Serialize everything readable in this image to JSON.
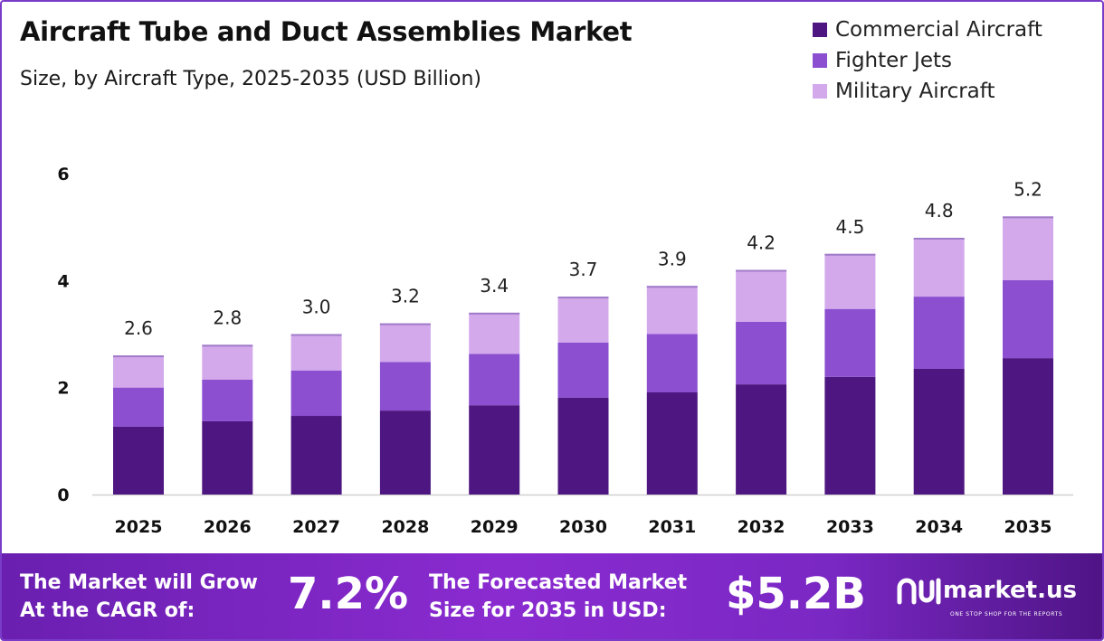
{
  "header": {
    "title": "Aircraft Tube and Duct Assemblies Market",
    "subtitle": "Size, by Aircraft Type, 2025-2035 (USD Billion)"
  },
  "legend": [
    {
      "label": "Commercial Aircraft",
      "color": "#4e1680"
    },
    {
      "label": "Fighter Jets",
      "color": "#8b4fd0"
    },
    {
      "label": "Military Aircraft",
      "color": "#d3a9ec"
    }
  ],
  "chart_data": {
    "type": "bar",
    "stacked": true,
    "title": "Aircraft Tube and Duct Assemblies Market",
    "subtitle": "Size, by Aircraft Type, 2025-2035 (USD Billion)",
    "categories": [
      "2025",
      "2026",
      "2027",
      "2028",
      "2029",
      "2030",
      "2031",
      "2032",
      "2033",
      "2034",
      "2035"
    ],
    "series": [
      {
        "name": "Commercial Aircraft",
        "color": "#4e1680",
        "values": [
          1.27,
          1.37,
          1.47,
          1.57,
          1.67,
          1.81,
          1.91,
          2.06,
          2.2,
          2.35,
          2.55
        ]
      },
      {
        "name": "Fighter Jets",
        "color": "#8b4fd0",
        "values": [
          0.73,
          0.78,
          0.85,
          0.91,
          0.96,
          1.03,
          1.09,
          1.17,
          1.27,
          1.35,
          1.46
        ]
      },
      {
        "name": "Military Aircraft",
        "color": "#d3a9ec",
        "values": [
          0.6,
          0.65,
          0.68,
          0.72,
          0.77,
          0.86,
          0.9,
          0.97,
          1.03,
          1.1,
          1.19
        ]
      }
    ],
    "totals": [
      "2.6",
      "2.8",
      "3.0",
      "3.2",
      "3.4",
      "3.7",
      "3.9",
      "4.2",
      "4.5",
      "4.8",
      "5.2"
    ],
    "yticks": [
      "0",
      "2",
      "4",
      "6"
    ],
    "ylim": [
      0,
      6
    ],
    "legend_position": "top-right",
    "grid": false
  },
  "footer": {
    "cagr_text_1": "The Market will Grow",
    "cagr_text_2": "At the CAGR of:",
    "cagr_value": "7.2%",
    "forecast_text_1": "The Forecasted Market",
    "forecast_text_2": "Size for 2035 in USD:",
    "forecast_value": "$5.2B",
    "brand_name": "market.us",
    "brand_tagline": "ONE STOP SHOP FOR THE REPORTS"
  }
}
